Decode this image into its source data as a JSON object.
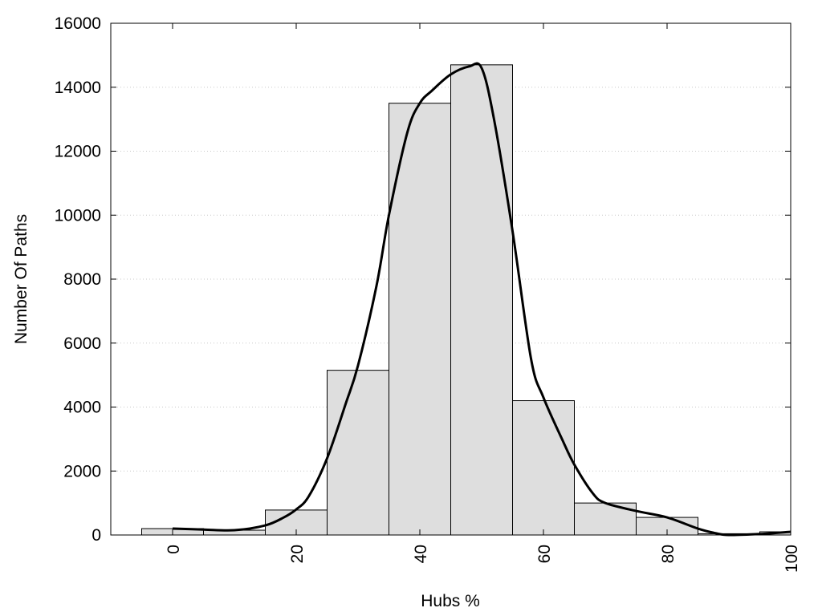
{
  "chart_data": {
    "type": "bar",
    "title": "",
    "xlabel": "Hubs %",
    "ylabel": "Number Of Paths",
    "xlim": [
      -10,
      100
    ],
    "ylim": [
      0,
      16000
    ],
    "x_ticks": [
      0,
      20,
      40,
      60,
      80,
      100
    ],
    "y_ticks": [
      0,
      2000,
      4000,
      6000,
      8000,
      10000,
      12000,
      14000,
      16000
    ],
    "grid": "horizontal dotted",
    "bin_width": 10,
    "bins": [
      0,
      10,
      20,
      30,
      40,
      50,
      60,
      70,
      80,
      90,
      100
    ],
    "values": [
      200,
      150,
      780,
      5150,
      13500,
      14700,
      4200,
      1000,
      550,
      40,
      100
    ],
    "colors": {
      "bar_fill": "#dedede",
      "bar_stroke": "#000000",
      "curve": "#000000",
      "grid": "#c8c8c8"
    },
    "density_curve": {
      "x": [
        0,
        5,
        10,
        15,
        18,
        20,
        22,
        25,
        28,
        30,
        33,
        35,
        38,
        40,
        42,
        45,
        48,
        50,
        52,
        55,
        58,
        60,
        63,
        65,
        68,
        70,
        75,
        80,
        85,
        88,
        90,
        95,
        100
      ],
      "y": [
        200,
        170,
        150,
        300,
        550,
        800,
        1200,
        2400,
        4100,
        5300,
        7800,
        10000,
        12600,
        13500,
        13900,
        14400,
        14650,
        14600,
        13000,
        9500,
        5500,
        4300,
        3000,
        2200,
        1300,
        1000,
        750,
        550,
        200,
        50,
        0,
        30,
        100
      ]
    }
  }
}
